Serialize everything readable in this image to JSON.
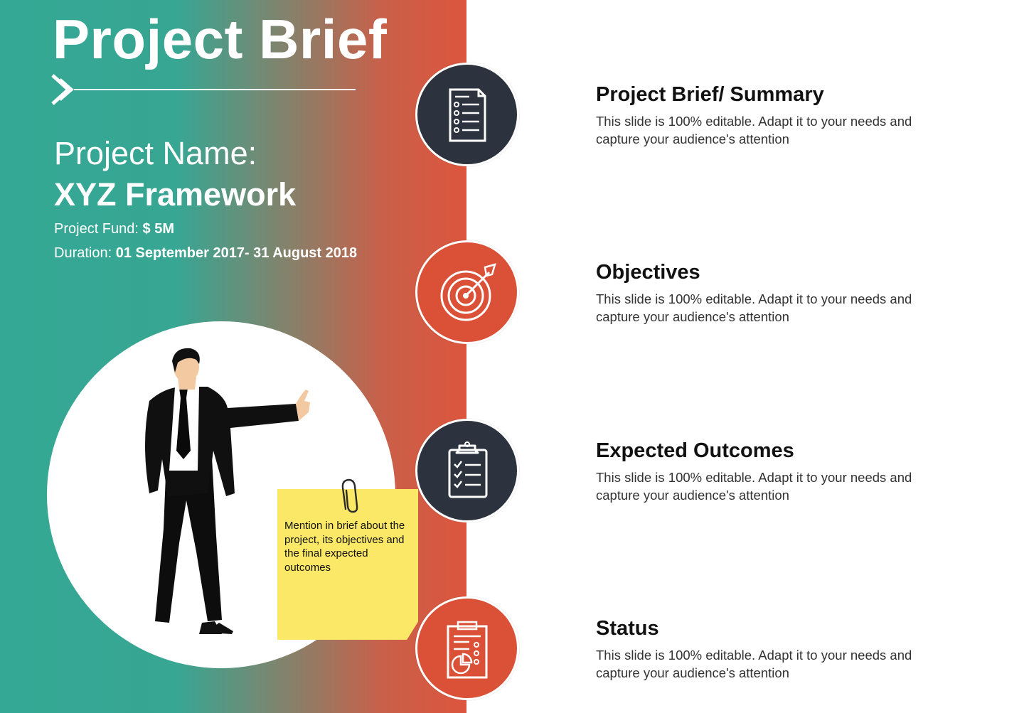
{
  "header": {
    "title": "Project Brief"
  },
  "project": {
    "name_label": "Project Name:",
    "name_value": "XYZ Framework",
    "fund_label": "Project Fund: ",
    "fund_value": "$ 5M",
    "duration_label": "Duration: ",
    "duration_value": "01  September 2017- 31 August  2018"
  },
  "note": {
    "text": "Mention in brief about the project, its objectives and the final expected outcomes"
  },
  "sections": [
    {
      "icon": "document-list-icon",
      "icon_color": "#2c333e",
      "heading": "Project Brief/ Summary",
      "body": "This slide is 100% editable. Adapt it to your needs and capture your audience's attention"
    },
    {
      "icon": "target-icon",
      "icon_color": "#db5138",
      "heading": "Objectives",
      "body": "This slide is 100% editable. Adapt it to your needs and capture your audience's attention"
    },
    {
      "icon": "clipboard-checklist-icon",
      "icon_color": "#2c333e",
      "heading": "Expected Outcomes",
      "body": "This slide is 100% editable. Adapt it to your needs and capture your audience's attention"
    },
    {
      "icon": "report-chart-icon",
      "icon_color": "#db5138",
      "heading": "Status",
      "body": "This slide is 100% editable. Adapt it to your needs and capture your audience's attention"
    }
  ],
  "colors": {
    "teal": "#34a894",
    "orange_red": "#dc553d",
    "dark_navy": "#2c333e",
    "sticky_yellow": "#fbe867"
  }
}
